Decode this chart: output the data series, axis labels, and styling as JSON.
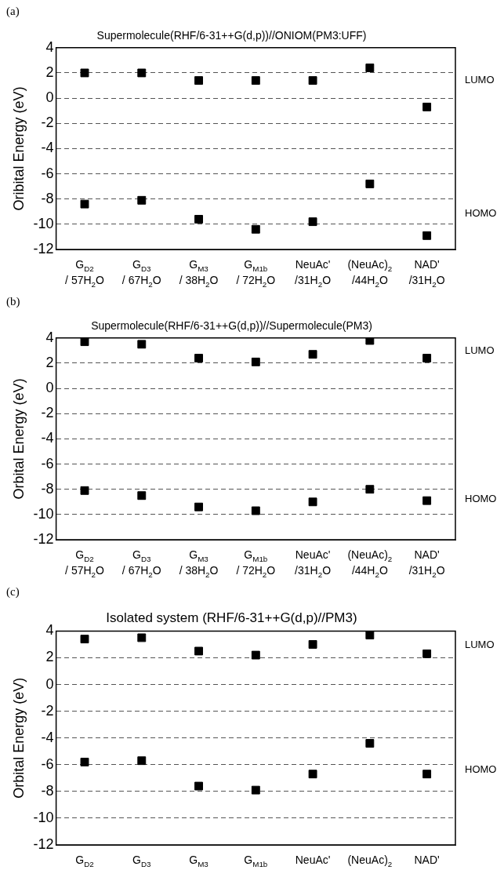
{
  "chart_data": [
    {
      "type": "scatter",
      "title": "Supermolecule(RHF/6-31++G(d,p))//ONIOM(PM3:UFF)",
      "ylabel": "Oribital Energy (eV)",
      "annotations": [
        "(a)"
      ],
      "categories": [
        "G$_{D2}$\n/ 57H$_{2}$O",
        "G$_{D3}$\n/ 67H$_{2}$O",
        "G$_{M3}$\n/ 38H$_{2}$O",
        "G$_{M1b}$\n/ 72H$_{2}$O",
        "NeuAc'\n/31H$_{2}$O",
        "(NeuAc)$_{2}$\n/44H$_{2}$O",
        "NAD'\n/31H$_{2}$O"
      ],
      "series": [
        {
          "name": "LUMO",
          "color": "#000000",
          "values": [
            2.0,
            2.0,
            1.4,
            1.4,
            1.4,
            2.4,
            -0.7
          ]
        },
        {
          "name": "HOMO",
          "color": "#000000",
          "values": [
            -8.4,
            -8.1,
            -9.6,
            -10.4,
            -9.8,
            -6.8,
            -10.9
          ]
        }
      ],
      "ylim": [
        -12,
        4
      ],
      "yticks": [
        -12,
        -10,
        -8,
        -6,
        -4,
        -2,
        0,
        2,
        4
      ],
      "grid": "y",
      "marker": "square"
    },
    {
      "type": "scatter",
      "title": "Supermolecule(RHF/6-31++G(d,p))//Supermolecule(PM3)",
      "ylabel": "Orbital Energy (eV)",
      "annotations": [
        "(b)"
      ],
      "categories": [
        "G$_{D2}$\n/ 57H$_{2}$O",
        "G$_{D3}$\n/ 67H$_{2}$O",
        "G$_{M3}$\n/ 38H$_{2}$O",
        "G$_{M1b}$\n/ 72H$_{2}$O",
        "NeuAc'\n/31H$_{2}$O",
        "(NeuAc)$_{2}$\n/44H$_{2}$O",
        "NAD'\n/31H$_{2}$O"
      ],
      "series": [
        {
          "name": "LUMO",
          "color": "#000000",
          "values": [
            3.7,
            3.5,
            2.4,
            2.1,
            2.7,
            3.8,
            2.4
          ]
        },
        {
          "name": "HOMO",
          "color": "#000000",
          "values": [
            -8.1,
            -8.5,
            -9.4,
            -9.7,
            -9.0,
            -8.0,
            -8.9
          ]
        }
      ],
      "ylim": [
        -12,
        4
      ],
      "yticks": [
        -12,
        -10,
        -8,
        -6,
        -4,
        -2,
        0,
        2,
        4
      ],
      "grid": "y",
      "marker": "square"
    },
    {
      "type": "scatter",
      "title": "Isolated system (RHF/6-31++G(d,p)//PM3)",
      "ylabel": "Orbital Energy (eV)",
      "annotations": [
        "(c)"
      ],
      "categories": [
        "G$_{D2}$",
        "G$_{D3}$",
        "G$_{M3}$",
        "G$_{M1b}$",
        "NeuAc'",
        "(NeuAc)$_{2}$",
        "NAD'"
      ],
      "series": [
        {
          "name": "LUMO",
          "color": "#000000",
          "values": [
            3.4,
            3.5,
            2.5,
            2.2,
            3.0,
            3.7,
            2.3
          ]
        },
        {
          "name": "HOMO",
          "color": "#000000",
          "values": [
            -5.8,
            -5.7,
            -7.6,
            -7.9,
            -6.7,
            -4.4,
            -6.7
          ]
        }
      ],
      "ylim": [
        -12,
        4
      ],
      "yticks": [
        -12,
        -10,
        -8,
        -6,
        -4,
        -2,
        0,
        2,
        4
      ],
      "grid": "y",
      "marker": "square"
    }
  ]
}
